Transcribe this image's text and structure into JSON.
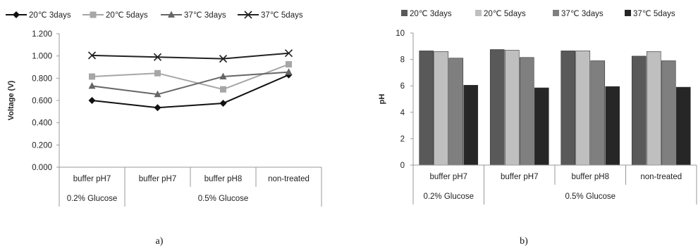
{
  "chart_data": [
    {
      "type": "line",
      "categories": [
        "buffer pH7",
        "buffer pH7",
        "buffer pH8",
        "non-treated"
      ],
      "groups": [
        {
          "label": "0.2% Glucose",
          "span": [
            0,
            0
          ]
        },
        {
          "label": "0.5% Glucose",
          "span": [
            1,
            3
          ]
        }
      ],
      "series": [
        {
          "name": "20℃ 3days",
          "marker": "diamond",
          "color": "#111111",
          "values": [
            0.6,
            0.535,
            0.575,
            0.83
          ]
        },
        {
          "name": "20℃ 5days",
          "marker": "square",
          "color": "#a6a6a6",
          "values": [
            0.815,
            0.845,
            0.7,
            0.925
          ]
        },
        {
          "name": "37℃ 3days",
          "marker": "triangle",
          "color": "#666666",
          "values": [
            0.73,
            0.655,
            0.815,
            0.855
          ]
        },
        {
          "name": "37℃ 5days",
          "marker": "x",
          "color": "#222222",
          "values": [
            1.005,
            0.99,
            0.975,
            1.025
          ]
        }
      ],
      "ylabel": "Voltage (V)",
      "ylim": [
        0,
        1.2
      ],
      "yticks": [
        "0.000",
        "0.200",
        "0.400",
        "0.600",
        "0.800",
        "1.000",
        "1.200"
      ],
      "legend": "top",
      "grid": false,
      "caption": "a)"
    },
    {
      "type": "bar",
      "categories": [
        "buffer pH7",
        "buffer pH7",
        "buffer pH8",
        "non-treated"
      ],
      "groups": [
        {
          "label": "0.2% Glucose",
          "span": [
            0,
            0
          ]
        },
        {
          "label": "0.5% Glucose",
          "span": [
            1,
            3
          ]
        }
      ],
      "series": [
        {
          "name": "20℃ 3days",
          "color": "#595959",
          "values": [
            8.65,
            8.75,
            8.65,
            8.25
          ]
        },
        {
          "name": "20℃ 5days",
          "color": "#bfbfbf",
          "values": [
            8.6,
            8.7,
            8.65,
            8.6
          ]
        },
        {
          "name": "37℃ 3days",
          "color": "#7f7f7f",
          "values": [
            8.1,
            8.15,
            7.9,
            7.9
          ]
        },
        {
          "name": "37℃ 5days",
          "color": "#262626",
          "values": [
            6.05,
            5.85,
            5.95,
            5.9
          ]
        }
      ],
      "ylabel": "pH",
      "ylim": [
        0,
        10
      ],
      "yticks": [
        "0",
        "2",
        "4",
        "6",
        "8",
        "10"
      ],
      "legend": "top",
      "grid": false,
      "caption": "b)"
    }
  ]
}
